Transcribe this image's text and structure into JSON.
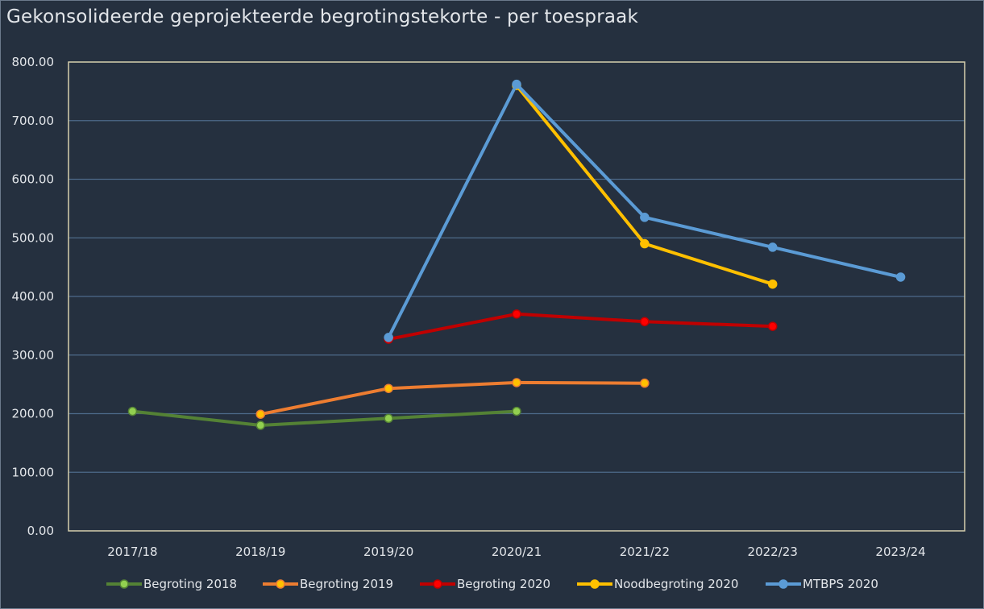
{
  "chart_data": {
    "type": "line",
    "title": "Gekonsolideerde geprojekteerde begrotingstekorte - per toespraak",
    "xlabel": "",
    "ylabel": "",
    "categories": [
      "2017/18",
      "2018/19",
      "2019/20",
      "2020/21",
      "2021/22",
      "2022/23",
      "2023/24"
    ],
    "ylim": [
      0,
      800
    ],
    "yticks": [
      "0.00",
      "100.00",
      "200.00",
      "300.00",
      "400.00",
      "500.00",
      "600.00",
      "700.00",
      "800.00"
    ],
    "grid": true,
    "legend_position": "bottom",
    "series": [
      {
        "name": "Begroting 2018",
        "color": "#548235",
        "marker": "#92d050",
        "values": [
          204,
          180,
          192,
          204,
          null,
          null,
          null
        ]
      },
      {
        "name": "Begroting 2019",
        "color": "#ed7d31",
        "marker": "#ffc000",
        "values": [
          null,
          199,
          243,
          253,
          252,
          null,
          null
        ]
      },
      {
        "name": "Begroting 2020",
        "color": "#c00000",
        "marker": "#ff0000",
        "values": [
          null,
          null,
          327,
          370,
          357,
          349,
          null
        ]
      },
      {
        "name": "Noodbegroting 2020",
        "color": "#ffc000",
        "marker": "#ffc000",
        "values": [
          null,
          null,
          null,
          760,
          490,
          421,
          null
        ]
      },
      {
        "name": "MTBPS 2020",
        "color": "#5b9bd5",
        "marker": "#5b9bd5",
        "values": [
          null,
          null,
          330,
          762,
          535,
          484,
          433
        ]
      }
    ]
  }
}
